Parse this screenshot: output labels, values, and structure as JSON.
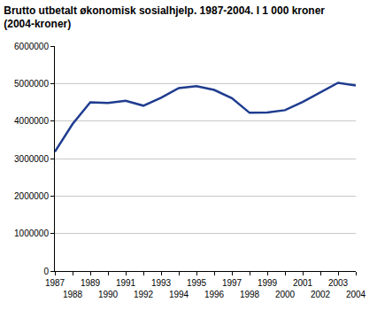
{
  "chart_data": {
    "type": "line",
    "title": "Brutto utbetalt økonomisk sosialhjelp. 1987-2004. I 1 000 kroner",
    "subtitle": "(2004-kroner)",
    "x": [
      1987,
      1988,
      1989,
      1990,
      1991,
      1992,
      1993,
      1994,
      1995,
      1996,
      1997,
      1998,
      1999,
      2000,
      2001,
      2002,
      2003,
      2004
    ],
    "values": [
      3180000,
      3920000,
      4500000,
      4480000,
      4540000,
      4410000,
      4620000,
      4880000,
      4930000,
      4830000,
      4610000,
      4220000,
      4230000,
      4290000,
      4510000,
      4760000,
      5020000,
      4950000
    ],
    "color": "#1f3c8f",
    "xlim": [
      1987,
      2004
    ],
    "xticks": [
      1987,
      1988,
      1989,
      1990,
      1991,
      1992,
      1993,
      1994,
      1995,
      1996,
      1997,
      1998,
      1999,
      2000,
      2001,
      2002,
      2003,
      2004
    ],
    "ylim": [
      0,
      6000000
    ],
    "yticks": [
      0,
      1000000,
      2000000,
      3000000,
      4000000,
      5000000,
      6000000
    ],
    "grid": true
  }
}
